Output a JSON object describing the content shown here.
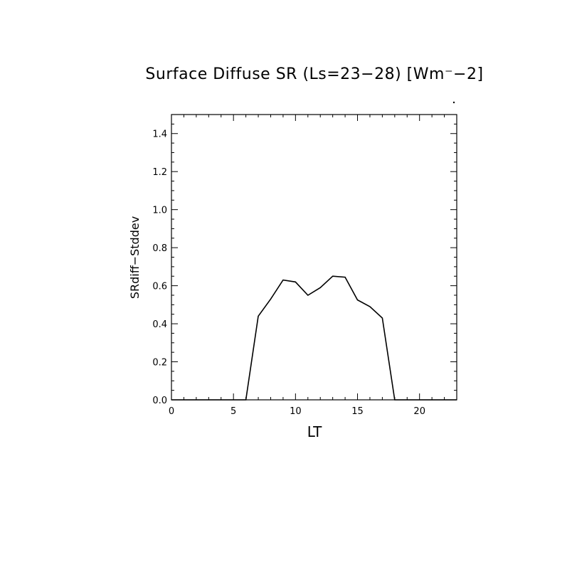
{
  "chart_data": {
    "type": "line",
    "title": "Surface Diffuse SR (Ls=23−28) [Wm⁻−2]",
    "xlabel": "LT",
    "ylabel": "SRdiff−Stddev",
    "xlim": [
      0,
      23
    ],
    "ylim": [
      0,
      1.5
    ],
    "x_ticks": [
      0,
      5,
      10,
      15,
      20
    ],
    "x_tick_labels": [
      "0",
      "5",
      "10",
      "15",
      "20"
    ],
    "y_ticks": [
      0.0,
      0.2,
      0.4,
      0.6,
      0.8,
      1.0,
      1.2,
      1.4
    ],
    "y_tick_labels": [
      "0.0",
      "0.2",
      "0.4",
      "0.6",
      "0.8",
      "1.0",
      "1.2",
      "1.4"
    ],
    "grid": false,
    "series": [
      {
        "x": [
          0,
          1,
          2,
          3,
          4,
          5,
          6,
          7,
          8,
          9,
          10,
          11,
          12,
          13,
          14,
          15,
          16,
          17,
          18,
          19,
          20,
          21,
          22,
          23
        ],
        "values": [
          0,
          0,
          0,
          0,
          0,
          0,
          0,
          0.44,
          0.53,
          0.63,
          0.62,
          0.55,
          0.59,
          0.65,
          0.645,
          0.525,
          0.49,
          0.43,
          0,
          0,
          0,
          0,
          0,
          0
        ],
        "color": "#000000"
      }
    ]
  }
}
